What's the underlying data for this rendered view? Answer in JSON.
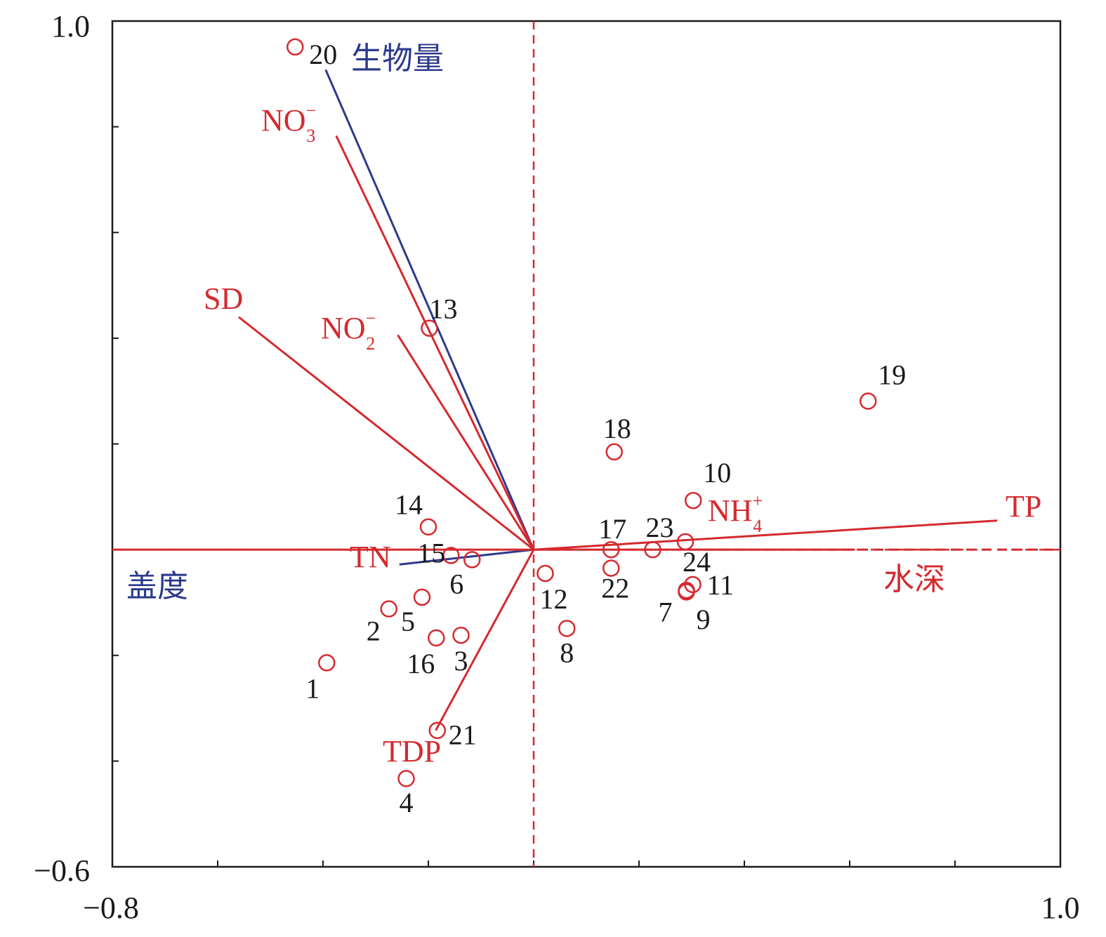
{
  "chart_data": {
    "type": "scatter",
    "subtype": "RDA triplot (biplot with sample points and variable arrows)",
    "xlim": [
      -0.8,
      1.0
    ],
    "ylim": [
      -0.6,
      1.0
    ],
    "x_tick_labels": [
      "−0.8",
      "1.0"
    ],
    "y_tick_labels": [
      "1.0",
      "−0.6"
    ],
    "x_ticks": [
      -0.6,
      -0.4,
      -0.2,
      0.0,
      0.2,
      0.4,
      0.6,
      0.8
    ],
    "y_ticks": [
      0.8,
      0.6,
      0.4,
      0.2,
      0.0,
      -0.2,
      -0.4
    ],
    "grid": false,
    "reference_lines": {
      "x": 0.0,
      "y": 0.0,
      "style": "dashed"
    },
    "colors": {
      "environment": "#d42a2f",
      "response": "#2c3a8c",
      "sites": "#d42a2f",
      "text": "#1a1a1a"
    },
    "points": [
      {
        "label": "1",
        "x": -0.393,
        "y": -0.214
      },
      {
        "label": "2",
        "x": -0.275,
        "y": -0.112
      },
      {
        "label": "3",
        "x": -0.138,
        "y": -0.162
      },
      {
        "label": "4",
        "x": -0.242,
        "y": -0.433
      },
      {
        "label": "5",
        "x": -0.212,
        "y": -0.09
      },
      {
        "label": "6",
        "x": -0.117,
        "y": -0.019
      },
      {
        "label": "7",
        "x": 0.29,
        "y": -0.08
      },
      {
        "label": "8",
        "x": 0.063,
        "y": -0.149
      },
      {
        "label": "9",
        "x": 0.29,
        "y": -0.077
      },
      {
        "label": "10",
        "x": 0.303,
        "y": 0.093
      },
      {
        "label": "11",
        "x": 0.302,
        "y": -0.066
      },
      {
        "label": "12",
        "x": 0.022,
        "y": -0.045
      },
      {
        "label": "13",
        "x": -0.198,
        "y": 0.419
      },
      {
        "label": "14",
        "x": -0.2,
        "y": 0.043
      },
      {
        "label": "15",
        "x": -0.157,
        "y": -0.011
      },
      {
        "label": "16",
        "x": -0.185,
        "y": -0.167
      },
      {
        "label": "17",
        "x": 0.147,
        "y": 0.0
      },
      {
        "label": "18",
        "x": 0.153,
        "y": 0.185
      },
      {
        "label": "19",
        "x": 0.635,
        "y": 0.281
      },
      {
        "label": "20",
        "x": -0.453,
        "y": 0.951
      },
      {
        "label": "21",
        "x": -0.183,
        "y": -0.342
      },
      {
        "label": "22",
        "x": 0.147,
        "y": -0.035
      },
      {
        "label": "23",
        "x": 0.226,
        "y": 0.0
      },
      {
        "label": "24",
        "x": 0.288,
        "y": 0.015
      }
    ],
    "vectors": [
      {
        "name": "生物量",
        "group": "response",
        "x": -0.395,
        "y": 0.908
      },
      {
        "name": "盖度",
        "group": "response",
        "x": -0.255,
        "y": -0.028
      },
      {
        "name": "NO",
        "sup": "−",
        "sub": "3",
        "group": "environment",
        "x": -0.375,
        "y": 0.783
      },
      {
        "name": "NO",
        "sup": "−",
        "sub": "2",
        "group": "environment",
        "x": -0.258,
        "y": 0.406
      },
      {
        "name": "SD",
        "group": "environment",
        "x": -0.56,
        "y": 0.44
      },
      {
        "name": "TN",
        "group": "environment",
        "x": -0.8,
        "y": 0.0
      },
      {
        "name": "TDP",
        "group": "environment",
        "x": -0.186,
        "y": -0.342
      },
      {
        "name": "TP",
        "group": "environment",
        "x": 0.88,
        "y": 0.055
      },
      {
        "name": "NH",
        "sup": "+",
        "sub": "4",
        "group": "environment",
        "x": 0.61,
        "y": 0.0
      },
      {
        "name": "水深",
        "group": "environment",
        "x": 1.0,
        "y": 0.0,
        "dashed": true
      }
    ]
  }
}
